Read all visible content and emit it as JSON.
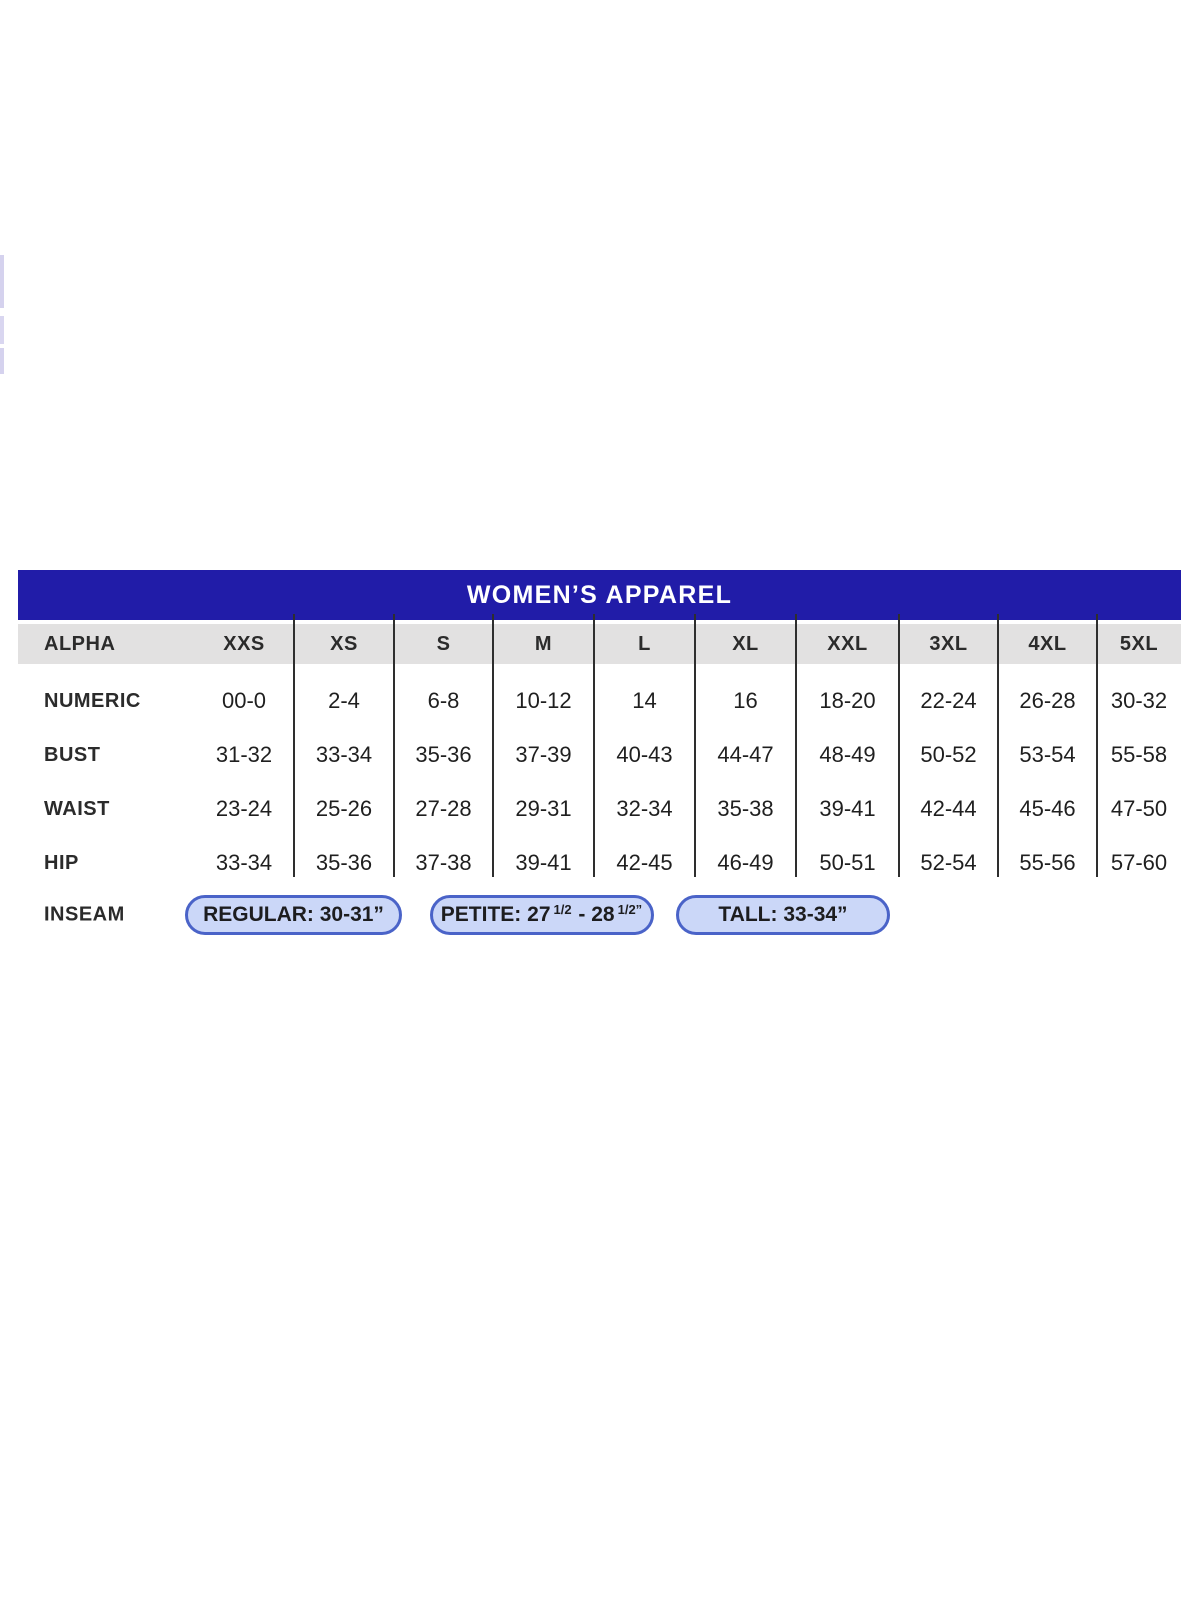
{
  "page": {
    "background": "#ffffff"
  },
  "colors": {
    "title_bg": "#211CA8",
    "title_text": "#ffffff",
    "header_bg": "#e2e1e1",
    "divider": "#2e2e2e",
    "text": "#1f1f1f",
    "pill_fill": "#cbd7f8",
    "pill_border": "#4a63c8",
    "edge_mark": "#d5d2ee"
  },
  "table": {
    "title": "WOMEN’S APPAREL",
    "header": {
      "label": "ALPHA",
      "columns": [
        "XXS",
        "XS",
        "S",
        "M",
        "L",
        "XL",
        "XXL",
        "3XL",
        "4XL",
        "5XL"
      ]
    },
    "rows": [
      {
        "label": "NUMERIC",
        "values": [
          "00-0",
          "2-4",
          "6-8",
          "10-12",
          "14",
          "16",
          "18-20",
          "22-24",
          "26-28",
          "30-32"
        ]
      },
      {
        "label": "BUST",
        "values": [
          "31-32",
          "33-34",
          "35-36",
          "37-39",
          "40-43",
          "44-47",
          "48-49",
          "50-52",
          "53-54",
          "55-58"
        ]
      },
      {
        "label": "WAIST",
        "values": [
          "23-24",
          "25-26",
          "27-28",
          "29-31",
          "32-34",
          "35-38",
          "39-41",
          "42-44",
          "45-46",
          "47-50"
        ]
      },
      {
        "label": "HIP",
        "values": [
          "33-34",
          "35-36",
          "37-38",
          "39-41",
          "42-45",
          "46-49",
          "50-51",
          "52-54",
          "55-56",
          "57-60"
        ]
      }
    ],
    "inseam": {
      "label": "INSEAM",
      "pills": [
        {
          "name": "regular",
          "segments": [
            {
              "text": "REGULAR: 30-31”",
              "sup": false
            }
          ]
        },
        {
          "name": "petite",
          "segments": [
            {
              "text": "PETITE: 27",
              "sup": false
            },
            {
              "text": "1/2",
              "sup": true
            },
            {
              "text": " - 28",
              "sup": false
            },
            {
              "text": "1/2”",
              "sup": true
            }
          ]
        },
        {
          "name": "tall",
          "segments": [
            {
              "text": "TALL: 33-34”",
              "sup": false
            }
          ]
        }
      ]
    }
  }
}
